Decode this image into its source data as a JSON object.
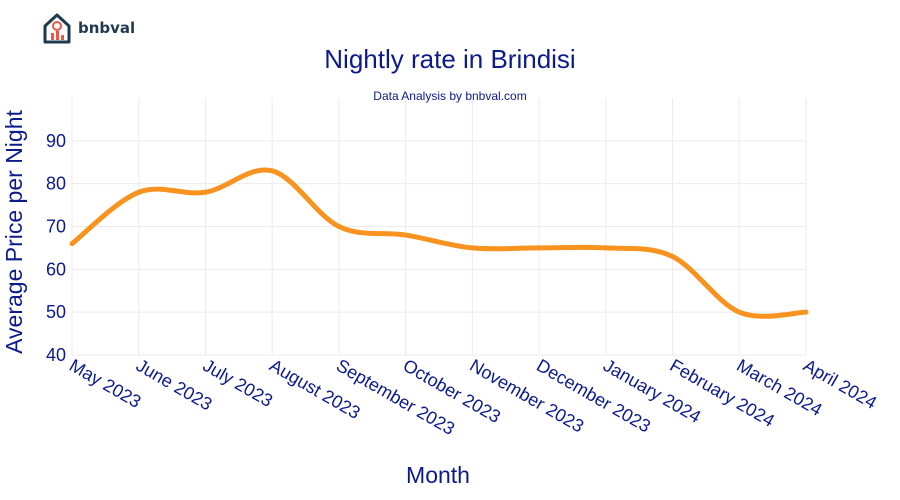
{
  "brand": {
    "name": "bnbval",
    "logo_icon": "house-chart-icon"
  },
  "chart_data": {
    "type": "line",
    "title": "Nightly rate in Brindisi",
    "subtitle": "Data Analysis by bnbval.com",
    "xlabel": "Month",
    "ylabel": "Average Price per Night",
    "categories": [
      "May 2023",
      "June 2023",
      "July 2023",
      "August 2023",
      "September 2023",
      "October 2023",
      "November 2023",
      "December 2023",
      "January 2024",
      "February 2024",
      "March 2024",
      "April 2024"
    ],
    "series": [
      {
        "name": "Average Price per Night",
        "color": "#f7931e",
        "values": [
          66,
          78,
          78,
          83,
          70,
          68,
          65,
          65,
          65,
          63,
          50,
          50
        ]
      }
    ],
    "ylim": [
      40,
      100
    ],
    "yticks": [
      40,
      50,
      60,
      70,
      80,
      90
    ],
    "grid": true,
    "colors": {
      "text": "#0c1a8c",
      "grid": "#ebebeb",
      "line": "#f7931e"
    }
  }
}
